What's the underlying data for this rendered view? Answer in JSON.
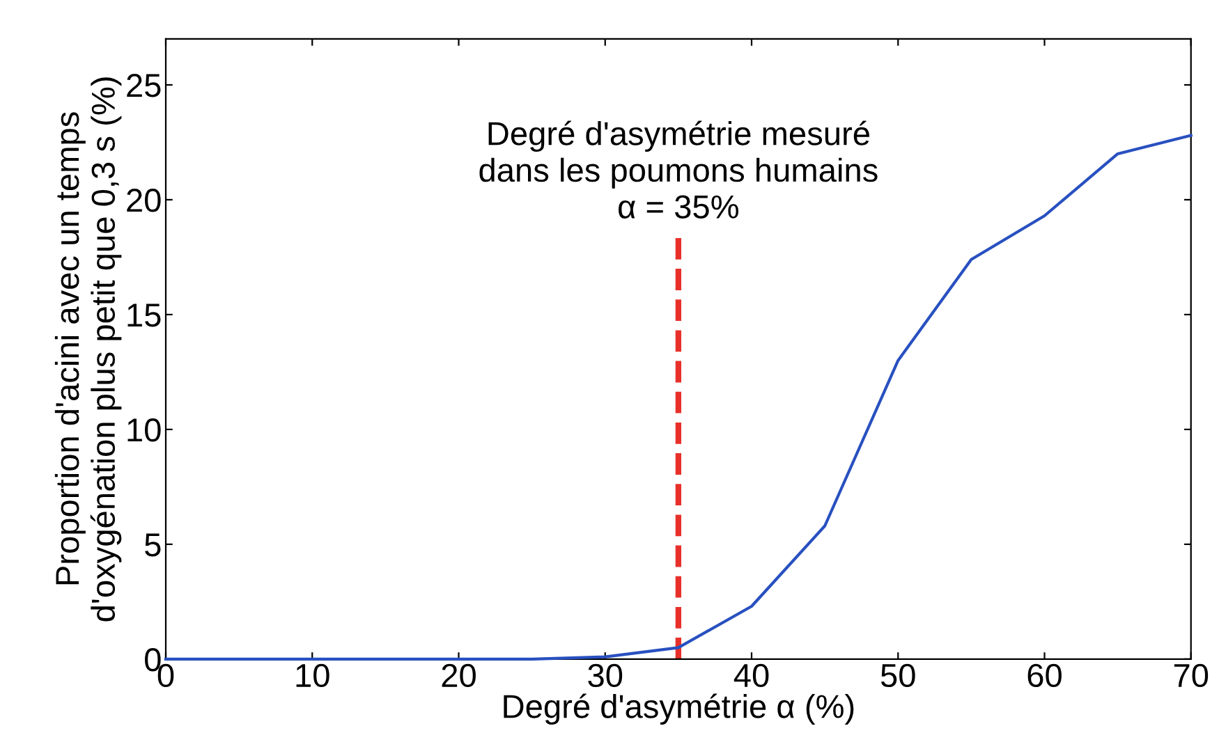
{
  "chart_data": {
    "type": "line",
    "xlabel": "Degré d'asymétrie α (%)",
    "ylabel": "Proportion d'acini avec un temps\nd'oxygénation plus petit que 0,3 s (%)",
    "x": [
      0,
      5,
      10,
      15,
      20,
      25,
      30,
      35,
      40,
      45,
      50,
      55,
      60,
      65,
      70
    ],
    "series": [
      {
        "color": "#2850c0",
        "values": [
          0,
          0,
          0,
          0,
          0,
          0,
          0.1,
          0.5,
          2.3,
          5.8,
          13.0,
          17.4,
          19.3,
          22.0,
          22.8
        ]
      }
    ],
    "xlim": [
      0,
      70
    ],
    "ylim": [
      0,
      27
    ],
    "xticks": [
      0,
      10,
      20,
      30,
      40,
      50,
      60,
      70
    ],
    "yticks": [
      0,
      5,
      10,
      15,
      20,
      25
    ],
    "ref_lines": [
      {
        "axis": "x",
        "value": 35,
        "label": "Degré d'asymétrie mesuré\ndans les poumons humains\nα = 35%",
        "color": "#e8302a",
        "line_style": "dashed"
      }
    ],
    "grid": false,
    "marker": "none",
    "line_style": "solid"
  }
}
